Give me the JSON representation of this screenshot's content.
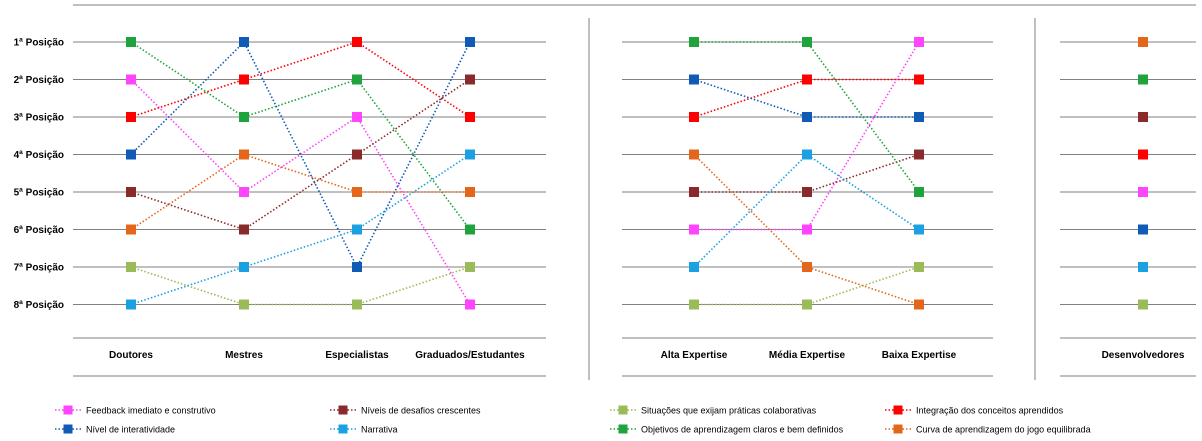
{
  "chart_data": {
    "type": "line",
    "title": "",
    "y_tick_labels": [
      "1ª Posição",
      "2ª Posição",
      "3ª Posição",
      "4ª Posição",
      "5ª Posição",
      "6ª Posição",
      "7ª Posição",
      "8ª Posição"
    ],
    "grid": true,
    "legend_position": "bottom",
    "panels": [
      {
        "categories": [
          "Doutores",
          "Mestres",
          "Especialistas",
          "Graduados/Estudantes"
        ],
        "series": [
          {
            "name": "Feedback imediato e construtivo",
            "values": [
              2,
              5,
              3,
              8
            ]
          },
          {
            "name": "Níveis de desafios crescentes",
            "values": [
              5,
              6,
              4,
              2
            ]
          },
          {
            "name": "Situações que exijam práticas colaborativas",
            "values": [
              7,
              8,
              8,
              7
            ]
          },
          {
            "name": "Integração dos conceitos aprendidos",
            "values": [
              3,
              2,
              1,
              3
            ]
          },
          {
            "name": "Nível de interatividade",
            "values": [
              4,
              1,
              7,
              1
            ]
          },
          {
            "name": "Narrativa",
            "values": [
              8,
              7,
              6,
              4
            ]
          },
          {
            "name": "Objetivos de aprendizagem claros e bem definidos",
            "values": [
              1,
              3,
              2,
              6
            ]
          },
          {
            "name": "Curva de aprendizagem do jogo equilibrada",
            "values": [
              6,
              4,
              5,
              5
            ]
          }
        ]
      },
      {
        "categories": [
          "Alta Expertise",
          "Média Expertise",
          "Baixa Expertise"
        ],
        "series": [
          {
            "name": "Feedback imediato e construtivo",
            "values": [
              6,
              6,
              1
            ]
          },
          {
            "name": "Níveis de desafios crescentes",
            "values": [
              5,
              5,
              4
            ]
          },
          {
            "name": "Situações que exijam práticas colaborativas",
            "values": [
              8,
              8,
              7
            ]
          },
          {
            "name": "Integração dos conceitos aprendidos",
            "values": [
              3,
              2,
              2
            ]
          },
          {
            "name": "Nível de interatividade",
            "values": [
              2,
              3,
              3
            ]
          },
          {
            "name": "Narrativa",
            "values": [
              7,
              4,
              6
            ]
          },
          {
            "name": "Objetivos de aprendizagem claros e bem definidos",
            "values": [
              1,
              1,
              5
            ]
          },
          {
            "name": "Curva de aprendizagem do jogo equilibrada",
            "values": [
              4,
              7,
              8
            ]
          }
        ]
      },
      {
        "categories": [
          "Desenvolvedores"
        ],
        "series": [
          {
            "name": "Feedback imediato e construtivo",
            "values": [
              5
            ]
          },
          {
            "name": "Níveis de desafios crescentes",
            "values": [
              3
            ]
          },
          {
            "name": "Situações que exijam práticas colaborativas",
            "values": [
              8
            ]
          },
          {
            "name": "Integração dos conceitos aprendidos",
            "values": [
              4
            ]
          },
          {
            "name": "Nível de interatividade",
            "values": [
              6
            ]
          },
          {
            "name": "Narrativa",
            "values": [
              7
            ]
          },
          {
            "name": "Objetivos de aprendizagem claros e bem definidos",
            "values": [
              2
            ]
          },
          {
            "name": "Curva de aprendizagem do jogo equilibrada",
            "values": [
              1
            ]
          }
        ]
      }
    ],
    "series_colors": {
      "Feedback imediato e construtivo": "#ff44ff",
      "Níveis de desafios crescentes": "#8b2a2a",
      "Situações que exijam práticas colaborativas": "#9bbb59",
      "Integração dos conceitos aprendidos": "#ff0000",
      "Nível de interatividade": "#0f5bb5",
      "Narrativa": "#1ba1e2",
      "Objetivos de aprendizagem claros e bem definidos": "#1fa33d",
      "Curva de aprendizagem do jogo equilibrada": "#e4661b"
    },
    "legend": [
      "Feedback imediato e construtivo",
      "Níveis de desafios crescentes",
      "Situações que exijam práticas colaborativas",
      "Integração dos conceitos aprendidos",
      "Nível de interatividade",
      "Narrativa",
      "Objetivos de aprendizagem claros e bem definidos",
      "Curva de aprendizagem do jogo equilibrada"
    ]
  }
}
